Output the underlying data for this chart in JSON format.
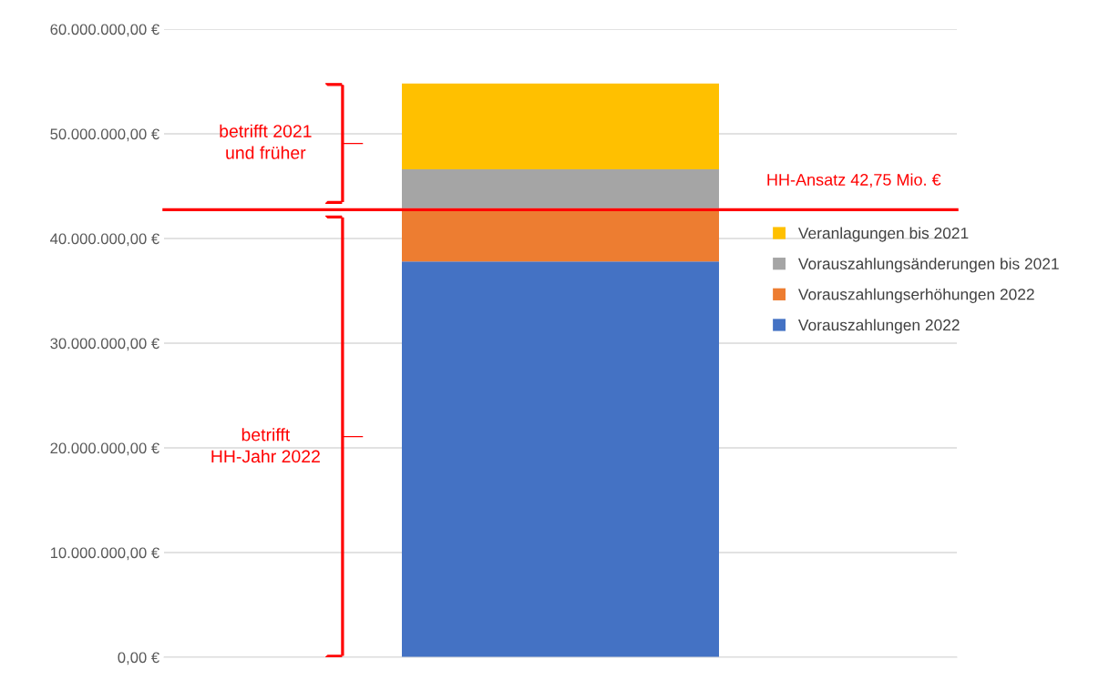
{
  "chart_data": {
    "type": "bar",
    "stacked": true,
    "categories": [
      null
    ],
    "series": [
      {
        "name": "Vorauszahlungen 2022",
        "color": "#4472c4",
        "values": [
          37800000
        ]
      },
      {
        "name": "Vorauszahlungserhöhungen 2022",
        "color": "#ed7d31",
        "values": [
          5100000
        ]
      },
      {
        "name": "Vorauszahlungsänderungen bis 2021",
        "color": "#a5a5a5",
        "values": [
          3700000
        ]
      },
      {
        "name": "Veranlagungen bis 2021",
        "color": "#ffc000",
        "values": [
          8200000
        ]
      }
    ],
    "ylim": [
      0,
      60000000
    ],
    "yticks": [
      {
        "value": 0,
        "label": "0,00 €"
      },
      {
        "value": 10000000,
        "label": "10.000.000,00 €"
      },
      {
        "value": 20000000,
        "label": "20.000.000,00 €"
      },
      {
        "value": 30000000,
        "label": "30.000.000,00 €"
      },
      {
        "value": 40000000,
        "label": "40.000.000,00 €"
      },
      {
        "value": 50000000,
        "label": "50.000.000,00 €"
      },
      {
        "value": 60000000,
        "label": "60.000.000,00 €"
      }
    ],
    "grid": "y",
    "legend": "right",
    "ref_lines": [
      {
        "axis": "y",
        "value": 42750000,
        "label": "HH-Ansatz 42,75 Mio. €",
        "color": "#ff0000"
      }
    ],
    "annotations": [
      "betrifft 2021\nund früher",
      "betrifft\nHH-Jahr 2022"
    ]
  }
}
